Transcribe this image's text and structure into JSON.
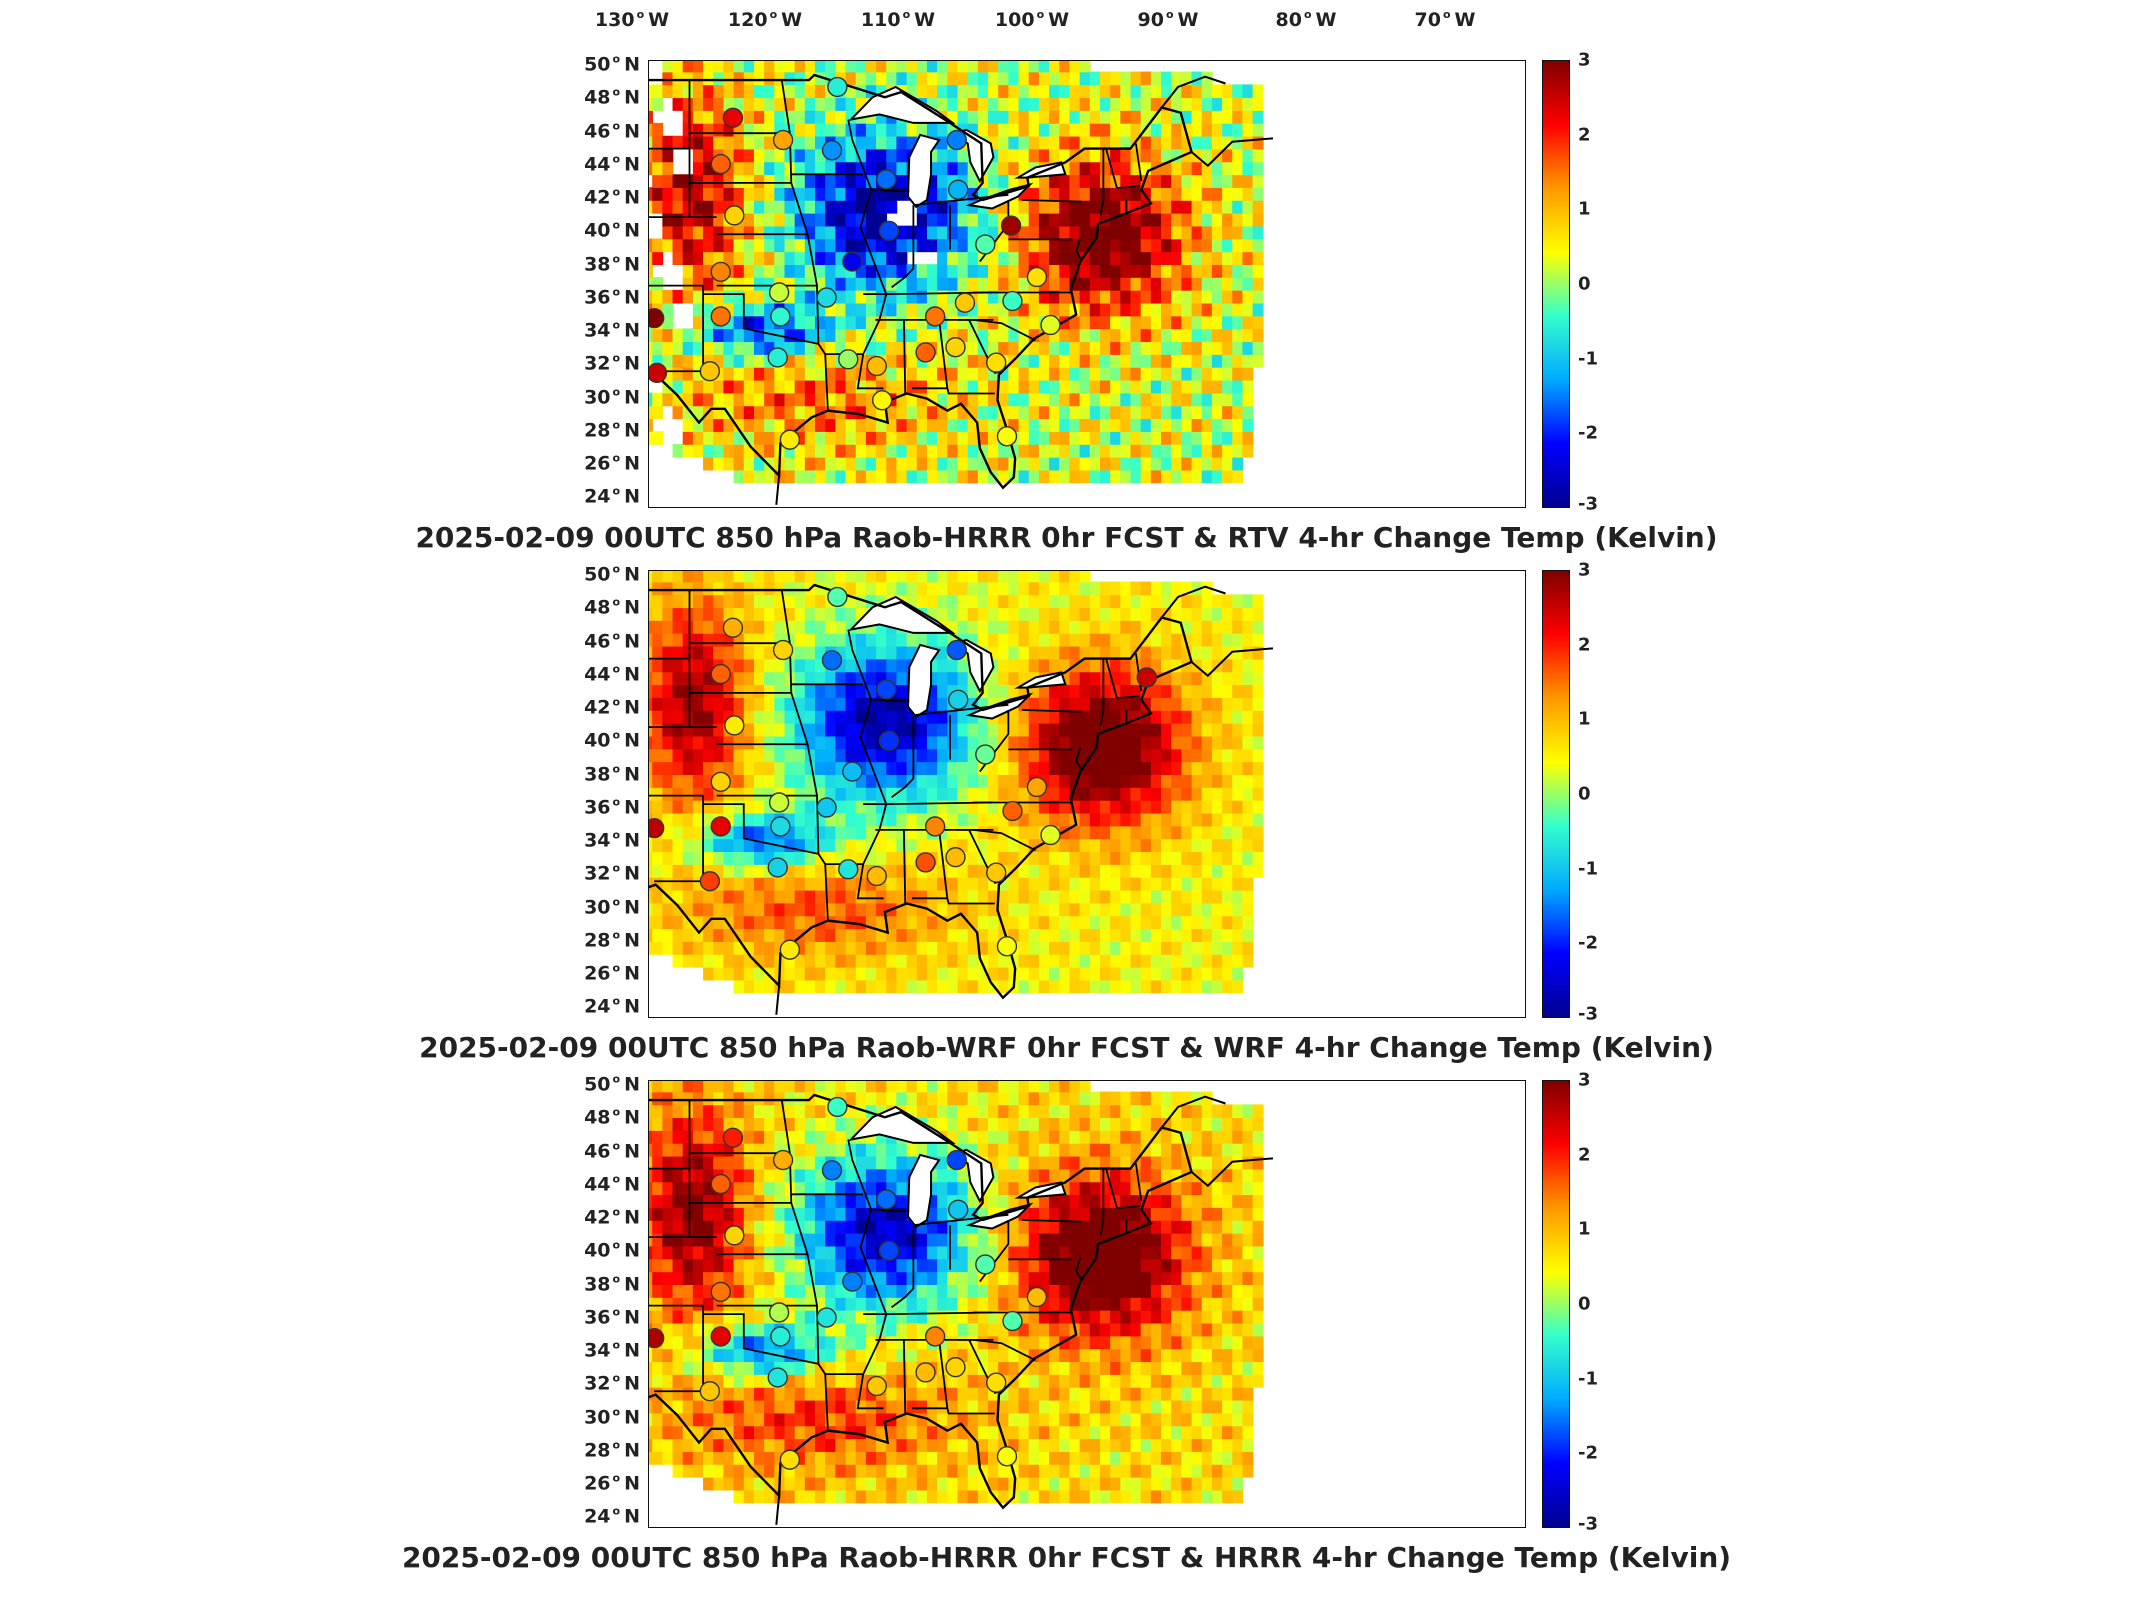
{
  "lon_ticks": [
    {
      "value": "130",
      "hemi": "W"
    },
    {
      "value": "120",
      "hemi": "W"
    },
    {
      "value": "110",
      "hemi": "W"
    },
    {
      "value": "100",
      "hemi": "W"
    },
    {
      "value": "90",
      "hemi": "W"
    },
    {
      "value": "80",
      "hemi": "W"
    },
    {
      "value": "70",
      "hemi": "W"
    }
  ],
  "lat_ticks": [
    {
      "value": "50",
      "hemi": "N"
    },
    {
      "value": "48",
      "hemi": "N"
    },
    {
      "value": "46",
      "hemi": "N"
    },
    {
      "value": "44",
      "hemi": "N"
    },
    {
      "value": "42",
      "hemi": "N"
    },
    {
      "value": "40",
      "hemi": "N"
    },
    {
      "value": "38",
      "hemi": "N"
    },
    {
      "value": "36",
      "hemi": "N"
    },
    {
      "value": "34",
      "hemi": "N"
    },
    {
      "value": "32",
      "hemi": "N"
    },
    {
      "value": "30",
      "hemi": "N"
    },
    {
      "value": "28",
      "hemi": "N"
    },
    {
      "value": "26",
      "hemi": "N"
    },
    {
      "value": "24",
      "hemi": "N"
    }
  ],
  "colorbar": {
    "ticks": [
      "3",
      "2",
      "1",
      "0",
      "-1",
      "-2",
      "-3"
    ],
    "colors": [
      "#800000",
      "#ff0000",
      "#ff9900",
      "#ffff00",
      "#33ffcc",
      "#00aaff",
      "#0000ff",
      "#00008f"
    ]
  },
  "panels": [
    {
      "title": "2025-02-09 00UTC 850 hPa Raob-HRRR 0hr FCST & RTV 4-hr Change Temp (Kelvin)",
      "field_style": "rtv",
      "stations": [
        {
          "lon": -116,
          "lat": 47.7,
          "v": 0.6
        },
        {
          "lon": -111.4,
          "lat": 47.5,
          "v": 0.3
        },
        {
          "lon": -100.8,
          "lat": 46.8,
          "v": 2.3
        },
        {
          "lon": -97.1,
          "lat": 45.5,
          "v": 1.2
        },
        {
          "lon": -101.7,
          "lat": 44.1,
          "v": 1.6
        },
        {
          "lon": -108.5,
          "lat": 43.1,
          "v": 1.9
        },
        {
          "lon": -100.7,
          "lat": 41.1,
          "v": 0.8
        },
        {
          "lon": -108.5,
          "lat": 39.1,
          "v": 2.6
        },
        {
          "lon": -101.7,
          "lat": 37.8,
          "v": 1.4
        },
        {
          "lon": -106.6,
          "lat": 35.1,
          "v": 3
        },
        {
          "lon": -101.7,
          "lat": 35.2,
          "v": 1.5
        },
        {
          "lon": -97.4,
          "lat": 36.6,
          "v": 0.2
        },
        {
          "lon": -97.3,
          "lat": 35.2,
          "v": -0.5
        },
        {
          "lon": -106.4,
          "lat": 31.9,
          "v": 2.5
        },
        {
          "lon": -102.5,
          "lat": 32.0,
          "v": 0.9
        },
        {
          "lon": -97.5,
          "lat": 32.8,
          "v": -0.6
        },
        {
          "lon": -96.6,
          "lat": 28.0,
          "v": 0.6
        },
        {
          "lon": -93.5,
          "lat": 44.9,
          "v": -1.4
        },
        {
          "lon": -92.0,
          "lat": 38.4,
          "v": -2.3
        },
        {
          "lon": -89.3,
          "lat": 40.2,
          "v": -1.8
        },
        {
          "lon": -89.5,
          "lat": 43.2,
          "v": -1.6
        },
        {
          "lon": -84.3,
          "lat": 45.5,
          "v": -1.5
        },
        {
          "lon": -84.2,
          "lat": 42.6,
          "v": -1.2
        },
        {
          "lon": -85.9,
          "lat": 35.2,
          "v": 1.5
        },
        {
          "lon": -86.6,
          "lat": 33.1,
          "v": 1.6
        },
        {
          "lon": -90.2,
          "lat": 32.3,
          "v": 1.0
        },
        {
          "lon": -93.9,
          "lat": 36.3,
          "v": -0.8
        },
        {
          "lon": -92.3,
          "lat": 32.7,
          "v": 0.0
        },
        {
          "lon": -89.8,
          "lat": 30.3,
          "v": 0.5
        },
        {
          "lon": -84.4,
          "lat": 33.4,
          "v": 0.8
        },
        {
          "lon": -81.4,
          "lat": 32.5,
          "v": 0.7
        },
        {
          "lon": -80.6,
          "lat": 28.2,
          "v": 0.4
        },
        {
          "lon": -80.3,
          "lat": 40.5,
          "v": 2.8
        },
        {
          "lon": -78.4,
          "lat": 37.5,
          "v": 0.7
        },
        {
          "lon": -80.2,
          "lat": 36.1,
          "v": -0.4
        },
        {
          "lon": -77.4,
          "lat": 34.7,
          "v": 0.3
        },
        {
          "lon": -82.2,
          "lat": 39.4,
          "v": -0.3
        },
        {
          "lon": -83.7,
          "lat": 36.0,
          "v": 0.9
        },
        {
          "lon": -93.1,
          "lat": 48.6,
          "v": -0.6
        }
      ]
    },
    {
      "title": "2025-02-09 00UTC 850 hPa Raob-WRF 0hr FCST & WRF 4-hr Change Temp (Kelvin)",
      "field_style": "wrf",
      "stations": [
        {
          "lon": -116,
          "lat": 47.7,
          "v": 1.2
        },
        {
          "lon": -111.4,
          "lat": 47.5,
          "v": 0.8
        },
        {
          "lon": -100.8,
          "lat": 46.8,
          "v": 1.1
        },
        {
          "lon": -97.1,
          "lat": 45.5,
          "v": 0.8
        },
        {
          "lon": -101.7,
          "lat": 44.1,
          "v": 1.6
        },
        {
          "lon": -108.5,
          "lat": 43.1,
          "v": 0.9
        },
        {
          "lon": -100.7,
          "lat": 41.1,
          "v": 0.6
        },
        {
          "lon": -108.5,
          "lat": 39.1,
          "v": 2.7
        },
        {
          "lon": -101.7,
          "lat": 37.8,
          "v": 0.8
        },
        {
          "lon": -106.6,
          "lat": 35.1,
          "v": 2.6
        },
        {
          "lon": -101.7,
          "lat": 35.2,
          "v": 2.3
        },
        {
          "lon": -97.4,
          "lat": 36.6,
          "v": 0.2
        },
        {
          "lon": -97.3,
          "lat": 35.2,
          "v": -0.8
        },
        {
          "lon": -102.5,
          "lat": 32.0,
          "v": 1.8
        },
        {
          "lon": -97.5,
          "lat": 32.8,
          "v": -0.9
        },
        {
          "lon": -96.6,
          "lat": 28.0,
          "v": 0.6
        },
        {
          "lon": -93.5,
          "lat": 44.9,
          "v": -1.6
        },
        {
          "lon": -92.0,
          "lat": 38.4,
          "v": -1.1
        },
        {
          "lon": -89.3,
          "lat": 40.2,
          "v": -1.9
        },
        {
          "lon": -89.5,
          "lat": 43.2,
          "v": -1.8
        },
        {
          "lon": -84.3,
          "lat": 45.5,
          "v": -1.7
        },
        {
          "lon": -84.2,
          "lat": 42.6,
          "v": -0.9
        },
        {
          "lon": -85.9,
          "lat": 35.2,
          "v": 1.4
        },
        {
          "lon": -86.6,
          "lat": 33.1,
          "v": 1.7
        },
        {
          "lon": -90.2,
          "lat": 32.3,
          "v": 1.0
        },
        {
          "lon": -93.9,
          "lat": 36.3,
          "v": -1.0
        },
        {
          "lon": -92.3,
          "lat": 32.7,
          "v": -0.7
        },
        {
          "lon": -84.4,
          "lat": 33.4,
          "v": 1.0
        },
        {
          "lon": -81.4,
          "lat": 32.5,
          "v": 0.9
        },
        {
          "lon": -80.6,
          "lat": 28.2,
          "v": 0.4
        },
        {
          "lon": -78.4,
          "lat": 37.5,
          "v": 1.2
        },
        {
          "lon": -80.2,
          "lat": 36.1,
          "v": 1.6
        },
        {
          "lon": -77.4,
          "lat": 34.7,
          "v": 0.3
        },
        {
          "lon": -82.2,
          "lat": 39.4,
          "v": -0.2
        },
        {
          "lon": -70.3,
          "lat": 43.9,
          "v": 2.5
        },
        {
          "lon": -93.1,
          "lat": 48.6,
          "v": -0.3
        }
      ]
    },
    {
      "title": "2025-02-09 00UTC 850 hPa Raob-HRRR 0hr FCST & HRRR 4-hr Change Temp (Kelvin)",
      "field_style": "hrrr",
      "stations": [
        {
          "lon": -116,
          "lat": 47.7,
          "v": 0.8
        },
        {
          "lon": -111.4,
          "lat": 47.5,
          "v": 0.5
        },
        {
          "lon": -100.8,
          "lat": 46.8,
          "v": 2.0
        },
        {
          "lon": -97.1,
          "lat": 45.5,
          "v": 1.1
        },
        {
          "lon": -101.7,
          "lat": 44.1,
          "v": 1.6
        },
        {
          "lon": -108.5,
          "lat": 43.1,
          "v": 2.0
        },
        {
          "lon": -100.7,
          "lat": 41.1,
          "v": 0.8
        },
        {
          "lon": -108.5,
          "lat": 39.1,
          "v": 2.6
        },
        {
          "lon": -101.7,
          "lat": 37.8,
          "v": 1.5
        },
        {
          "lon": -106.6,
          "lat": 35.1,
          "v": 2.7
        },
        {
          "lon": -101.7,
          "lat": 35.2,
          "v": 2.3
        },
        {
          "lon": -97.4,
          "lat": 36.6,
          "v": 0.1
        },
        {
          "lon": -97.3,
          "lat": 35.2,
          "v": -0.6
        },
        {
          "lon": -102.5,
          "lat": 32.0,
          "v": 0.9
        },
        {
          "lon": -97.5,
          "lat": 32.8,
          "v": -0.7
        },
        {
          "lon": -96.6,
          "lat": 28.0,
          "v": 0.7
        },
        {
          "lon": -93.5,
          "lat": 44.9,
          "v": -1.5
        },
        {
          "lon": -92.0,
          "lat": 38.4,
          "v": -1.5
        },
        {
          "lon": -89.3,
          "lat": 40.2,
          "v": -1.8
        },
        {
          "lon": -89.5,
          "lat": 43.2,
          "v": -1.6
        },
        {
          "lon": -84.3,
          "lat": 45.5,
          "v": -1.8
        },
        {
          "lon": -84.2,
          "lat": 42.6,
          "v": -1.0
        },
        {
          "lon": -85.9,
          "lat": 35.2,
          "v": 1.4
        },
        {
          "lon": -86.6,
          "lat": 33.1,
          "v": 1.0
        },
        {
          "lon": -90.2,
          "lat": 32.3,
          "v": 0.9
        },
        {
          "lon": -93.9,
          "lat": 36.3,
          "v": -0.7
        },
        {
          "lon": -84.4,
          "lat": 33.4,
          "v": 0.8
        },
        {
          "lon": -81.4,
          "lat": 32.5,
          "v": 0.7
        },
        {
          "lon": -80.6,
          "lat": 28.2,
          "v": 0.4
        },
        {
          "lon": -78.4,
          "lat": 37.5,
          "v": 1.0
        },
        {
          "lon": -80.2,
          "lat": 36.1,
          "v": -0.3
        },
        {
          "lon": -82.2,
          "lat": 39.4,
          "v": -0.3
        },
        {
          "lon": -93.1,
          "lat": 48.6,
          "v": -0.4
        }
      ]
    }
  ]
}
